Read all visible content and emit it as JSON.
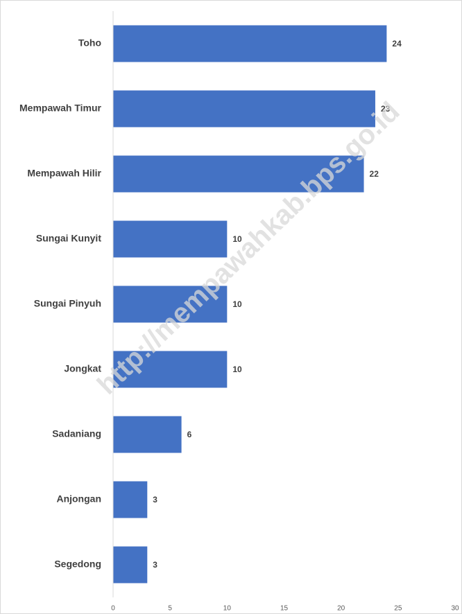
{
  "chart_data": {
    "type": "barh",
    "categories": [
      "Toho",
      "Mempawah Timur",
      "Mempawah Hilir",
      "Sungai Kunyit",
      "Sungai Pinyuh",
      "Jongkat",
      "Sadaniang",
      "Anjongan",
      "Segedong"
    ],
    "values": [
      24,
      23,
      22,
      10,
      10,
      10,
      6,
      3,
      3
    ],
    "color": "#4472c4",
    "xlim": [
      0,
      30
    ],
    "xticks": [
      0,
      5,
      10,
      15,
      20,
      25,
      30
    ],
    "grid": false,
    "watermark": "http://mempawahkab.bps.go.id"
  }
}
